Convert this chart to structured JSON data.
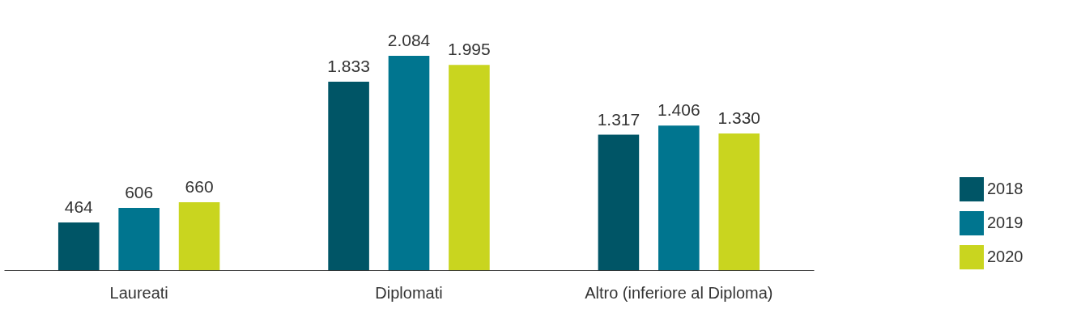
{
  "chart_data": {
    "type": "bar",
    "categories": [
      "Laureati",
      "Diplomati",
      "Altro (inferiore al Diploma)"
    ],
    "series": [
      {
        "name": "2018",
        "color": "#005566",
        "values": [
          464,
          1833,
          1317
        ],
        "value_labels": [
          "464",
          "1.833",
          "1.317"
        ]
      },
      {
        "name": "2019",
        "color": "#00758f",
        "values": [
          606,
          2084,
          1406
        ],
        "value_labels": [
          "606",
          "2.084",
          "1.406"
        ]
      },
      {
        "name": "2020",
        "color": "#c9d51f",
        "values": [
          660,
          1995,
          1330
        ],
        "value_labels": [
          "660",
          "1.995",
          "1.330"
        ]
      }
    ],
    "legend": "bottom right",
    "grid": false
  }
}
